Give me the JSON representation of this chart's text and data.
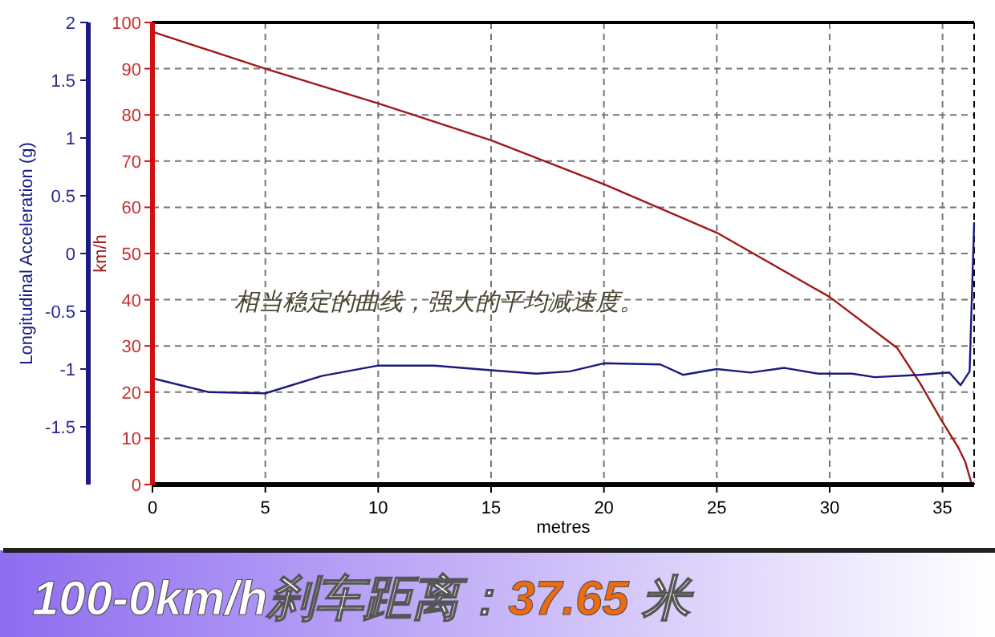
{
  "chart_data": {
    "type": "line",
    "title": "100-0km/h刹车距离：37.65 米",
    "xlabel": "metres",
    "ylabel": "km/h",
    "y2label": "Longitudinal Acceleration (g)",
    "annotations": [
      "相当稳定的曲线，强大的平均减速度。"
    ],
    "xlim": [
      0,
      36.4
    ],
    "xticks": [
      0,
      5,
      10,
      15,
      20,
      25,
      30,
      35
    ],
    "ylim": [
      0,
      100
    ],
    "yticks": [
      0,
      10,
      20,
      30,
      40,
      50,
      60,
      70,
      80,
      90,
      100
    ],
    "y2lim": [
      -2,
      2
    ],
    "y2ticks": [
      -1.5,
      -1,
      -0.5,
      0,
      0.5,
      1,
      1.5,
      2
    ],
    "grid": true,
    "line_style": "solid",
    "series": [
      {
        "color": "#a01818",
        "x": [
          0,
          5,
          10,
          15,
          20,
          25,
          30,
          33,
          34,
          35,
          35.7,
          36,
          36.3
        ],
        "values": [
          98,
          90,
          82.5,
          74.5,
          65,
          54.5,
          40.6,
          29.5,
          22,
          13.5,
          8,
          5,
          0
        ]
      },
      {
        "color": "#1a1a80",
        "axis": "y2",
        "x": [
          0,
          2.5,
          5,
          7.5,
          10,
          12.5,
          15,
          17,
          18.5,
          20,
          22.5,
          23.5,
          25,
          26.5,
          28,
          29.5,
          31,
          32,
          34,
          35.3,
          35.8,
          36.2,
          36.4
        ],
        "values": [
          -1.08,
          -1.2,
          -1.21,
          -1.06,
          -0.97,
          -0.97,
          -1.01,
          -1.04,
          -1.02,
          -0.95,
          -0.96,
          -1.05,
          -1.0,
          -1.03,
          -0.99,
          -1.04,
          -1.04,
          -1.07,
          -1.05,
          -1.03,
          -1.14,
          -1.02,
          0.27
        ]
      }
    ]
  }
}
